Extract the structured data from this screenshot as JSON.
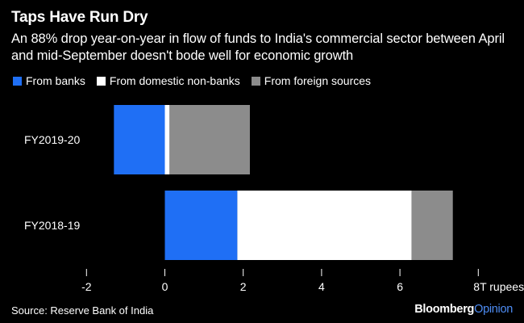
{
  "header": {
    "title": "Taps Have Run Dry",
    "subtitle": "An 88% drop year-on-year in flow of funds to India's commercial sector between April and mid-September doesn't bode well for economic growth"
  },
  "legend": [
    {
      "label": "From banks",
      "color": "#1f6ff5"
    },
    {
      "label": "From domestic non-banks",
      "color": "#ffffff"
    },
    {
      "label": "From foreign sources",
      "color": "#8c8c8c"
    }
  ],
  "footer": {
    "source": "Source: Reserve Bank of India",
    "brand_part1": "Bloomberg",
    "brand_part2": "Opinion"
  },
  "chart_data": {
    "type": "bar",
    "orientation": "horizontal",
    "stacked": true,
    "categories": [
      "FY2019-20",
      "FY2018-19"
    ],
    "series": [
      {
        "name": "From banks",
        "color": "#1f6ff5",
        "values": [
          -1.3,
          1.85
        ]
      },
      {
        "name": "From domestic non-banks",
        "color": "#ffffff",
        "values": [
          0.12,
          4.45
        ]
      },
      {
        "name": "From foreign sources",
        "color": "#8c8c8c",
        "values": [
          2.05,
          1.05
        ]
      }
    ],
    "xlim": [
      -2,
      8
    ],
    "xticks": [
      -2,
      0,
      2,
      4,
      6,
      8
    ],
    "xtick_labels": [
      "-2",
      "0",
      "2",
      "4",
      "6",
      "8T rupees"
    ],
    "grid": false
  }
}
